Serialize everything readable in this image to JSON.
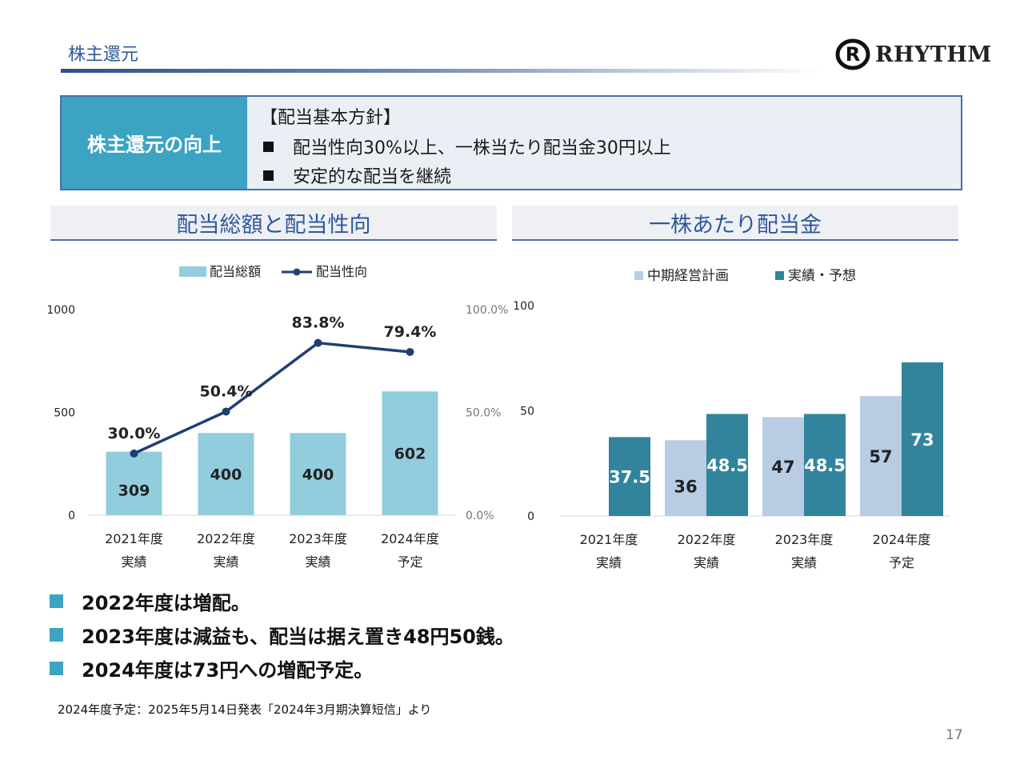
{
  "page": {
    "title": "株主還元",
    "logo_text": "RHYTHM",
    "page_number": "17",
    "source_note": "2024年度予定：2025年5月14日発表「2024年3月期決算短信」より"
  },
  "policy": {
    "label": "株主還元の向上",
    "heading": "【配当基本方針】",
    "items": [
      "配当性向30%以上、一株当たり配当金30円以上",
      "安定的な配当を継続"
    ]
  },
  "bullets": [
    "2022年度は増配。",
    "2023年度は減益も、配当は据え置き48円50銭。",
    "2024年度は73円への増配予定。"
  ],
  "colors": {
    "accent": "#3ca3c3",
    "title_blue": "#2e5a9c",
    "bar_total": "#92cddd",
    "line_payout": "#1f3f73",
    "bar_plan": "#b8cce4",
    "bar_actual": "#31849b"
  },
  "chart_data": [
    {
      "type": "bar",
      "title": "配当総額と配当性向",
      "categories": [
        [
          "2021年度",
          "実績"
        ],
        [
          "2022年度",
          "実績"
        ],
        [
          "2023年度",
          "実績"
        ],
        [
          "2024年度",
          "予定"
        ]
      ],
      "series": [
        {
          "name": "配当総額",
          "type": "bar",
          "axis": "left",
          "values": [
            309,
            400,
            400,
            602
          ],
          "labels": [
            "309",
            "400",
            "400",
            "602"
          ]
        },
        {
          "name": "配当性向",
          "type": "line",
          "axis": "right",
          "values": [
            30.0,
            50.4,
            83.8,
            79.4
          ],
          "labels": [
            "30.0%",
            "50.4%",
            "83.8%",
            "79.4%"
          ]
        }
      ],
      "ylim": [
        0,
        1000
      ],
      "y_ticks": [
        "0",
        "500",
        "1000"
      ],
      "y2lim": [
        0,
        100
      ],
      "y2_ticks": [
        "0.0%",
        "50.0%",
        "100.0%"
      ],
      "legend_position": "top"
    },
    {
      "type": "bar",
      "title": "一株あたり配当金",
      "categories": [
        [
          "2021年度",
          "実績"
        ],
        [
          "2022年度",
          "実績"
        ],
        [
          "2023年度",
          "実績"
        ],
        [
          "2024年度",
          "予定"
        ]
      ],
      "series": [
        {
          "name": "中期経営計画",
          "values": [
            null,
            36,
            47,
            57
          ],
          "labels": [
            "",
            "36",
            "47",
            "57"
          ]
        },
        {
          "name": "実績・予想",
          "values": [
            37.5,
            48.5,
            48.5,
            73
          ],
          "labels": [
            "37.5",
            "48.5",
            "48.5",
            "73"
          ]
        }
      ],
      "ylim": [
        0,
        100
      ],
      "y_ticks": [
        "0",
        "50",
        "100"
      ],
      "legend_position": "top"
    }
  ]
}
